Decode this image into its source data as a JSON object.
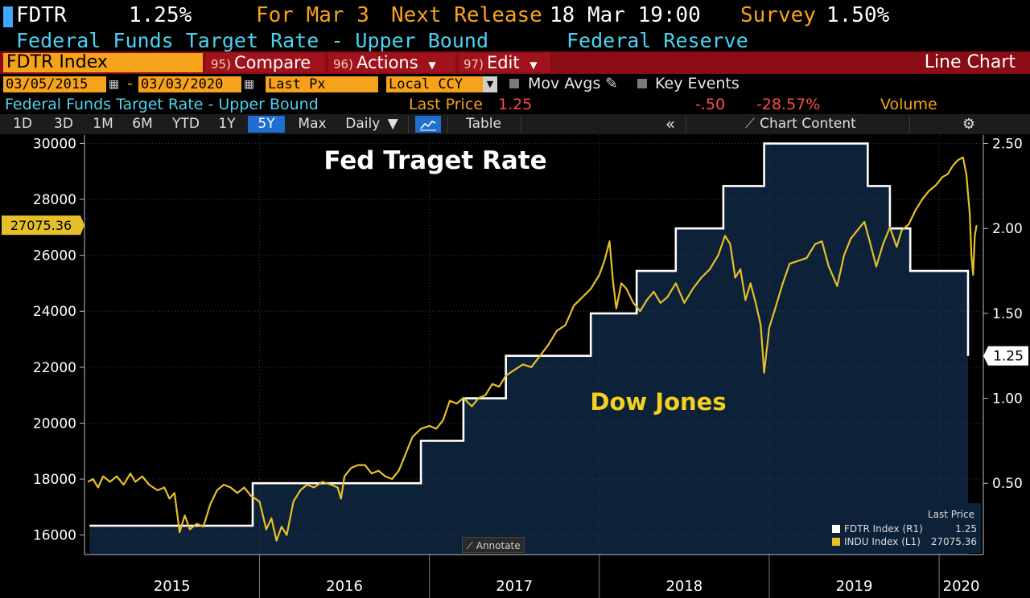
{
  "header": {
    "ticker": "FDTR",
    "value": "1.25%",
    "for_label": "For Mar 3",
    "next_release_label": "Next Release",
    "next_release_value": "18 Mar 19:00",
    "survey_label": "Survey",
    "survey_value": "1.50%",
    "description": "Federal Funds Target Rate - Upper Bound",
    "source": "Federal Reserve"
  },
  "toolbar": {
    "security": "FDTR Index",
    "compare_num": "95)",
    "compare_label": "Compare",
    "actions_num": "96)",
    "actions_label": "Actions",
    "edit_num": "97)",
    "edit_label": "Edit",
    "chart_type": "Line Chart"
  },
  "settings": {
    "start_date": "03/05/2015",
    "end_date": "03/03/2020",
    "dash": "-",
    "price_field": "Last Px",
    "currency": "Local CCY",
    "mov_avgs": "Mov Avgs",
    "key_events": "Key Events"
  },
  "stats": {
    "series_name": "Federal Funds Target Rate - Upper Bound",
    "last_price_label": "Last Price",
    "last_price": "1.25",
    "change": "-.50",
    "change_pct": "-28.57%",
    "volume_label": "Volume"
  },
  "periods": {
    "items": [
      "1D",
      "3D",
      "1M",
      "6M",
      "YTD",
      "1Y",
      "5Y",
      "Max"
    ],
    "selected": "5Y",
    "frequency": "Daily",
    "table_label": "Table",
    "chart_content_label": "Chart Content"
  },
  "annotate_label": "Annotate",
  "legend": {
    "header": "Last Price",
    "rows": [
      {
        "name": "FDTR Index  (R1)",
        "value": "1.25",
        "color": "#ffffff"
      },
      {
        "name": "INDU Index  (L1)",
        "value": "27075.36",
        "color": "#e6c02a"
      }
    ]
  },
  "colors": {
    "orange": "#f7a21b",
    "cyan": "#4dd3f2",
    "red_bar": "#8a0d15",
    "dow": "#e6c02a",
    "fed_fill": "#0d2138",
    "fed_line": "#ffffff"
  },
  "chart_data": {
    "type": "line",
    "title": "Fed Traget Rate",
    "annotation": "Dow Jones",
    "x_labels": [
      "2015",
      "2016",
      "2017",
      "2018",
      "2019",
      "2020"
    ],
    "x_range": [
      2014.97,
      2020.26
    ],
    "year_boundaries": [
      2016.0,
      2017.0,
      2018.0,
      2019.0,
      2020.0
    ],
    "left_axis": {
      "series": "INDU Index",
      "ylim": [
        15300,
        30300
      ],
      "ticks": [
        16000,
        18000,
        20000,
        22000,
        24000,
        26000,
        28000,
        30000
      ],
      "tick_labels": [
        "16000",
        "18000",
        "20000",
        "22000",
        "24000",
        "26000",
        "28000",
        "30000"
      ],
      "last_value_label": "27075.36",
      "last_value": 27075.36
    },
    "right_axis": {
      "series": "FDTR Index",
      "ylim": [
        0.08,
        2.55
      ],
      "ticks": [
        0.5,
        1.0,
        1.5,
        2.0,
        2.5
      ],
      "tick_labels": [
        "0.50",
        "1.00",
        "1.50",
        "2.00",
        "2.50"
      ],
      "last_value_label": "1.25",
      "last_value": 1.25
    },
    "series": [
      {
        "name": "FDTR Index",
        "axis": "right",
        "style": "step-area",
        "points": [
          [
            2015.0,
            0.25
          ],
          [
            2015.96,
            0.25
          ],
          [
            2015.96,
            0.5
          ],
          [
            2016.95,
            0.5
          ],
          [
            2016.95,
            0.75
          ],
          [
            2017.2,
            0.75
          ],
          [
            2017.2,
            1.0
          ],
          [
            2017.45,
            1.0
          ],
          [
            2017.45,
            1.25
          ],
          [
            2017.95,
            1.25
          ],
          [
            2017.95,
            1.5
          ],
          [
            2018.22,
            1.5
          ],
          [
            2018.22,
            1.75
          ],
          [
            2018.45,
            1.75
          ],
          [
            2018.45,
            2.0
          ],
          [
            2018.73,
            2.0
          ],
          [
            2018.73,
            2.25
          ],
          [
            2018.97,
            2.25
          ],
          [
            2018.97,
            2.5
          ],
          [
            2019.58,
            2.5
          ],
          [
            2019.58,
            2.25
          ],
          [
            2019.71,
            2.25
          ],
          [
            2019.71,
            2.0
          ],
          [
            2019.83,
            2.0
          ],
          [
            2019.83,
            1.75
          ],
          [
            2020.17,
            1.75
          ],
          [
            2020.17,
            1.25
          ]
        ]
      },
      {
        "name": "INDU Index",
        "axis": "left",
        "style": "line",
        "points": [
          [
            2014.99,
            17900
          ],
          [
            2015.02,
            18000
          ],
          [
            2015.05,
            17700
          ],
          [
            2015.08,
            18100
          ],
          [
            2015.12,
            17900
          ],
          [
            2015.16,
            18100
          ],
          [
            2015.2,
            17800
          ],
          [
            2015.24,
            18200
          ],
          [
            2015.27,
            17900
          ],
          [
            2015.31,
            18100
          ],
          [
            2015.35,
            17800
          ],
          [
            2015.4,
            17600
          ],
          [
            2015.44,
            17700
          ],
          [
            2015.47,
            17300
          ],
          [
            2015.5,
            17500
          ],
          [
            2015.53,
            16100
          ],
          [
            2015.56,
            16700
          ],
          [
            2015.59,
            16200
          ],
          [
            2015.63,
            16400
          ],
          [
            2015.67,
            16300
          ],
          [
            2015.71,
            17100
          ],
          [
            2015.75,
            17600
          ],
          [
            2015.79,
            17800
          ],
          [
            2015.83,
            17700
          ],
          [
            2015.87,
            17500
          ],
          [
            2015.91,
            17700
          ],
          [
            2015.95,
            17400
          ],
          [
            2016.0,
            17200
          ],
          [
            2016.04,
            16200
          ],
          [
            2016.07,
            16600
          ],
          [
            2016.1,
            15800
          ],
          [
            2016.13,
            16300
          ],
          [
            2016.16,
            16000
          ],
          [
            2016.2,
            17200
          ],
          [
            2016.24,
            17600
          ],
          [
            2016.28,
            17800
          ],
          [
            2016.32,
            17700
          ],
          [
            2016.37,
            17900
          ],
          [
            2016.42,
            17800
          ],
          [
            2016.46,
            17700
          ],
          [
            2016.48,
            17300
          ],
          [
            2016.5,
            18100
          ],
          [
            2016.54,
            18400
          ],
          [
            2016.58,
            18500
          ],
          [
            2016.62,
            18500
          ],
          [
            2016.66,
            18200
          ],
          [
            2016.7,
            18300
          ],
          [
            2016.74,
            18100
          ],
          [
            2016.78,
            18000
          ],
          [
            2016.82,
            18300
          ],
          [
            2016.86,
            18900
          ],
          [
            2016.9,
            19500
          ],
          [
            2016.95,
            19800
          ],
          [
            2017.0,
            19900
          ],
          [
            2017.04,
            19800
          ],
          [
            2017.08,
            20100
          ],
          [
            2017.12,
            20800
          ],
          [
            2017.16,
            20700
          ],
          [
            2017.2,
            20900
          ],
          [
            2017.25,
            20600
          ],
          [
            2017.29,
            20900
          ],
          [
            2017.33,
            21000
          ],
          [
            2017.37,
            21400
          ],
          [
            2017.41,
            21300
          ],
          [
            2017.45,
            21700
          ],
          [
            2017.5,
            21900
          ],
          [
            2017.55,
            22100
          ],
          [
            2017.6,
            22000
          ],
          [
            2017.65,
            22400
          ],
          [
            2017.7,
            22800
          ],
          [
            2017.75,
            23300
          ],
          [
            2017.8,
            23500
          ],
          [
            2017.85,
            24200
          ],
          [
            2017.9,
            24500
          ],
          [
            2017.95,
            24800
          ],
          [
            2018.0,
            25300
          ],
          [
            2018.03,
            25800
          ],
          [
            2018.06,
            26500
          ],
          [
            2018.08,
            25100
          ],
          [
            2018.1,
            24100
          ],
          [
            2018.13,
            25000
          ],
          [
            2018.16,
            24800
          ],
          [
            2018.2,
            24300
          ],
          [
            2018.24,
            24000
          ],
          [
            2018.28,
            24400
          ],
          [
            2018.32,
            24700
          ],
          [
            2018.36,
            24300
          ],
          [
            2018.4,
            24500
          ],
          [
            2018.45,
            25000
          ],
          [
            2018.5,
            24300
          ],
          [
            2018.55,
            24800
          ],
          [
            2018.6,
            25200
          ],
          [
            2018.65,
            25500
          ],
          [
            2018.7,
            26000
          ],
          [
            2018.74,
            26700
          ],
          [
            2018.77,
            26400
          ],
          [
            2018.8,
            25200
          ],
          [
            2018.83,
            25500
          ],
          [
            2018.86,
            24400
          ],
          [
            2018.89,
            25000
          ],
          [
            2018.92,
            24300
          ],
          [
            2018.95,
            23500
          ],
          [
            2018.97,
            21800
          ],
          [
            2019.0,
            23400
          ],
          [
            2019.04,
            24200
          ],
          [
            2019.08,
            25000
          ],
          [
            2019.12,
            25700
          ],
          [
            2019.17,
            25800
          ],
          [
            2019.22,
            25900
          ],
          [
            2019.27,
            26400
          ],
          [
            2019.31,
            26500
          ],
          [
            2019.35,
            25600
          ],
          [
            2019.4,
            24900
          ],
          [
            2019.44,
            26000
          ],
          [
            2019.48,
            26600
          ],
          [
            2019.52,
            26900
          ],
          [
            2019.56,
            27200
          ],
          [
            2019.6,
            26300
          ],
          [
            2019.63,
            25600
          ],
          [
            2019.67,
            26400
          ],
          [
            2019.71,
            27000
          ],
          [
            2019.75,
            26300
          ],
          [
            2019.78,
            26900
          ],
          [
            2019.82,
            27100
          ],
          [
            2019.86,
            27600
          ],
          [
            2019.9,
            28000
          ],
          [
            2019.94,
            28300
          ],
          [
            2019.98,
            28500
          ],
          [
            2020.02,
            28800
          ],
          [
            2020.05,
            28900
          ],
          [
            2020.08,
            29200
          ],
          [
            2020.11,
            29400
          ],
          [
            2020.14,
            29500
          ],
          [
            2020.16,
            28900
          ],
          [
            2020.18,
            27500
          ],
          [
            2020.19,
            26000
          ],
          [
            2020.2,
            25300
          ],
          [
            2020.21,
            26700
          ],
          [
            2020.22,
            27075.36
          ]
        ]
      }
    ]
  }
}
